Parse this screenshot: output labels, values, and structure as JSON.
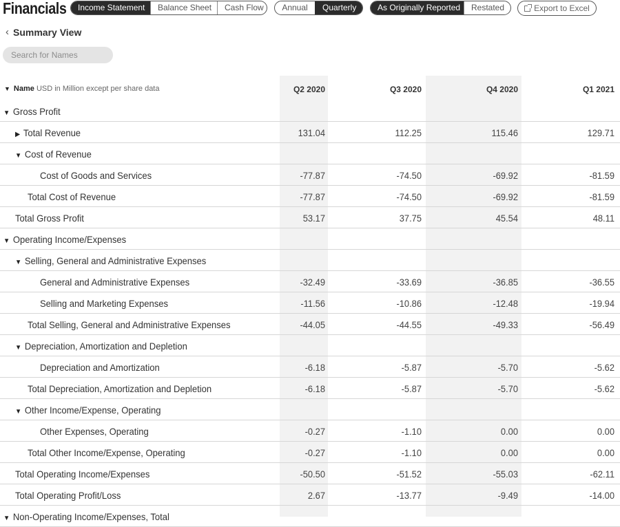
{
  "header": {
    "title": "Financials",
    "statements": [
      "Income Statement",
      "Balance Sheet",
      "Cash Flow"
    ],
    "periods": [
      "Annual",
      "Quarterly"
    ],
    "report_types": [
      "As Originally Reported",
      "Restated"
    ],
    "export_label": "Export to Excel"
  },
  "nav": {
    "summary_label": "Summary View"
  },
  "search": {
    "placeholder": "Search for Names"
  },
  "table": {
    "name_header": "Name",
    "units_note": "USD in Million except per share data",
    "columns": [
      "Q2 2020",
      "Q3 2020",
      "Q4 2020",
      "Q1 2021"
    ],
    "rows": [
      {
        "label": "Gross Profit",
        "indent": 0,
        "toggle": "expanded",
        "values": [
          "",
          "",
          "",
          ""
        ]
      },
      {
        "label": "Total Revenue",
        "indent": 1,
        "toggle": "collapsed",
        "values": [
          "131.04",
          "112.25",
          "115.46",
          "129.71"
        ]
      },
      {
        "label": "Cost of Revenue",
        "indent": 1,
        "toggle": "expanded",
        "values": [
          "",
          "",
          "",
          ""
        ]
      },
      {
        "label": "Cost of Goods and Services",
        "indent": 3,
        "toggle": "none",
        "values": [
          "-77.87",
          "-74.50",
          "-69.92",
          "-81.59"
        ]
      },
      {
        "label": "Total Cost of Revenue",
        "indent": 2,
        "toggle": "none",
        "values": [
          "-77.87",
          "-74.50",
          "-69.92",
          "-81.59"
        ]
      },
      {
        "label": "Total Gross Profit",
        "indent": 1,
        "toggle": "none",
        "values": [
          "53.17",
          "37.75",
          "45.54",
          "48.11"
        ]
      },
      {
        "label": "Operating Income/Expenses",
        "indent": 0,
        "toggle": "expanded",
        "values": [
          "",
          "",
          "",
          ""
        ]
      },
      {
        "label": "Selling, General and Administrative Expenses",
        "indent": 1,
        "toggle": "expanded",
        "values": [
          "",
          "",
          "",
          ""
        ]
      },
      {
        "label": "General and Administrative Expenses",
        "indent": 3,
        "toggle": "none",
        "values": [
          "-32.49",
          "-33.69",
          "-36.85",
          "-36.55"
        ]
      },
      {
        "label": "Selling and Marketing Expenses",
        "indent": 3,
        "toggle": "none",
        "values": [
          "-11.56",
          "-10.86",
          "-12.48",
          "-19.94"
        ]
      },
      {
        "label": "Total Selling, General and Administrative Expenses",
        "indent": 2,
        "toggle": "none",
        "values": [
          "-44.05",
          "-44.55",
          "-49.33",
          "-56.49"
        ]
      },
      {
        "label": "Depreciation, Amortization and Depletion",
        "indent": 1,
        "toggle": "expanded",
        "values": [
          "",
          "",
          "",
          ""
        ]
      },
      {
        "label": "Depreciation and Amortization",
        "indent": 3,
        "toggle": "none",
        "values": [
          "-6.18",
          "-5.87",
          "-5.70",
          "-5.62"
        ]
      },
      {
        "label": "Total Depreciation, Amortization and Depletion",
        "indent": 2,
        "toggle": "none",
        "values": [
          "-6.18",
          "-5.87",
          "-5.70",
          "-5.62"
        ]
      },
      {
        "label": "Other Income/Expense, Operating",
        "indent": 1,
        "toggle": "expanded",
        "values": [
          "",
          "",
          "",
          ""
        ]
      },
      {
        "label": "Other Expenses, Operating",
        "indent": 3,
        "toggle": "none",
        "values": [
          "-0.27",
          "-1.10",
          "0.00",
          "0.00"
        ]
      },
      {
        "label": "Total Other Income/Expense, Operating",
        "indent": 2,
        "toggle": "none",
        "values": [
          "-0.27",
          "-1.10",
          "0.00",
          "0.00"
        ]
      },
      {
        "label": "Total Operating Income/Expenses",
        "indent": 1,
        "toggle": "none",
        "values": [
          "-50.50",
          "-51.52",
          "-55.03",
          "-62.11"
        ]
      },
      {
        "label": "Total Operating Profit/Loss",
        "indent": 1,
        "toggle": "none",
        "values": [
          "2.67",
          "-13.77",
          "-9.49",
          "-14.00"
        ]
      },
      {
        "label": "Non-Operating Income/Expenses, Total",
        "indent": 0,
        "toggle": "expanded",
        "values": [
          "",
          "",
          "",
          ""
        ]
      }
    ]
  }
}
